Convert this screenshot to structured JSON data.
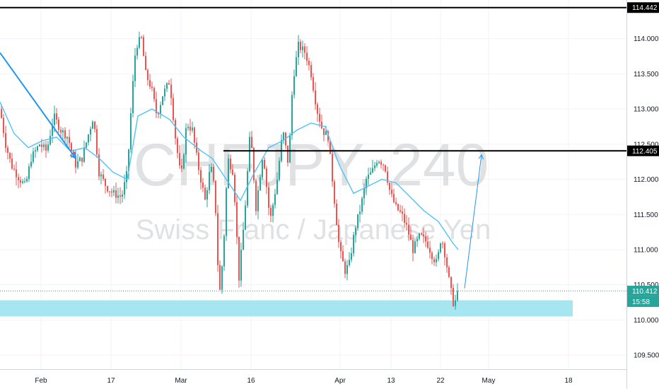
{
  "chart_data": {
    "type": "candlestick",
    "symbol_watermark": "CHFJPY, 240",
    "description_watermark": "Swiss Franc / Japanese Yen",
    "y_range": [
      109.3,
      114.55
    ],
    "x_tick_labels": [
      "Feb",
      "17",
      "Mar",
      "16",
      "Apr",
      "13",
      "22",
      "May",
      "18"
    ],
    "y_tick_labels": [
      "109.500",
      "110.000",
      "110.500",
      "111.000",
      "111.500",
      "112.000",
      "112.500",
      "113.000",
      "113.500",
      "114.000"
    ],
    "y_tick_values": [
      109.5,
      110.0,
      110.5,
      111.0,
      111.5,
      112.0,
      112.5,
      113.0,
      113.5,
      114.0
    ],
    "current_price": "110.412",
    "current_price_value": 110.412,
    "countdown": "15:58",
    "resistance_top": {
      "label": "114.442",
      "value": 114.442
    },
    "resistance_mid": {
      "label": "112.405",
      "value": 112.405
    },
    "support_zone": {
      "low": 110.05,
      "high": 110.28
    },
    "colors": {
      "up": "#26a69a",
      "down": "#ef5350",
      "ma": "#4fc3f7",
      "arrow": "#2196f3",
      "zone": "#a5e6f0",
      "level": "#000000",
      "price_line": "#26a69a",
      "grid": "#f0f3fa"
    },
    "ma_points": [
      [
        0,
        113.1
      ],
      [
        20,
        112.65
      ],
      [
        40,
        112.45
      ],
      [
        60,
        112.55
      ],
      [
        80,
        112.6
      ],
      [
        100,
        112.4
      ],
      [
        120,
        112.45
      ],
      [
        140,
        112.3
      ],
      [
        160,
        112.1
      ],
      [
        180,
        112.0
      ],
      [
        195,
        112.9
      ],
      [
        215,
        113.0
      ],
      [
        240,
        112.85
      ],
      [
        260,
        112.6
      ],
      [
        285,
        112.4
      ],
      [
        300,
        112.3
      ],
      [
        320,
        112.0
      ],
      [
        340,
        111.7
      ],
      [
        360,
        112.1
      ],
      [
        380,
        112.45
      ],
      [
        400,
        112.55
      ],
      [
        420,
        112.7
      ],
      [
        440,
        112.8
      ],
      [
        460,
        112.75
      ],
      [
        480,
        112.2
      ],
      [
        500,
        111.8
      ],
      [
        520,
        111.9
      ],
      [
        540,
        112.0
      ],
      [
        560,
        111.95
      ],
      [
        580,
        111.75
      ],
      [
        600,
        111.55
      ],
      [
        620,
        111.4
      ],
      [
        640,
        111.1
      ],
      [
        648,
        111.0
      ]
    ],
    "trend_arrow": {
      "from": [
        0,
        113.8
      ],
      "to": [
        107,
        112.3
      ]
    },
    "projection_arrow": {
      "from": [
        657,
        110.45
      ],
      "to": [
        681,
        112.35
      ]
    }
  }
}
